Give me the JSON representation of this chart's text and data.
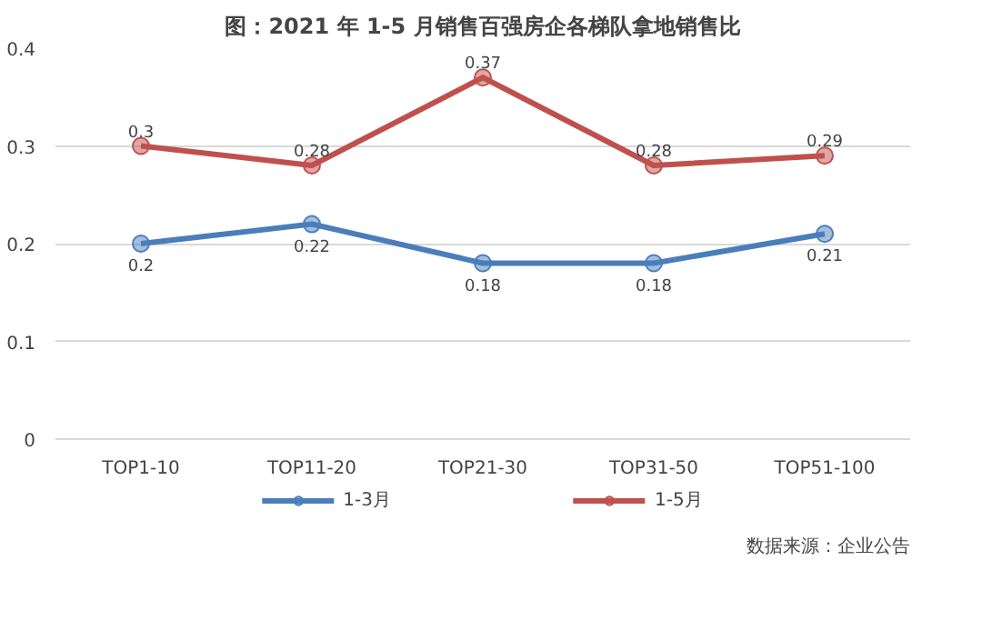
{
  "chart_data": {
    "type": "line",
    "title": "图：2021 年 1-5 月销售百强房企各梯队拿地销售比",
    "categories": [
      "TOP1-10",
      "TOP11-20",
      "TOP21-30",
      "TOP31-50",
      "TOP51-100"
    ],
    "series": [
      {
        "name": "1-3月",
        "color": "#4a7ebb",
        "values": [
          0.2,
          0.22,
          0.18,
          0.18,
          0.21
        ]
      },
      {
        "name": "1-5月",
        "color": "#c0504d",
        "values": [
          0.3,
          0.28,
          0.37,
          0.28,
          0.29
        ]
      }
    ],
    "ylim": [
      0,
      0.4
    ],
    "yticks": [
      0,
      0.1,
      0.2,
      0.3,
      0.4
    ],
    "grid": "y",
    "legend": "bottom",
    "marker": "circle",
    "line_style": "solid",
    "data_labels": true,
    "annotations": [
      "数据来源：企业公告"
    ]
  }
}
